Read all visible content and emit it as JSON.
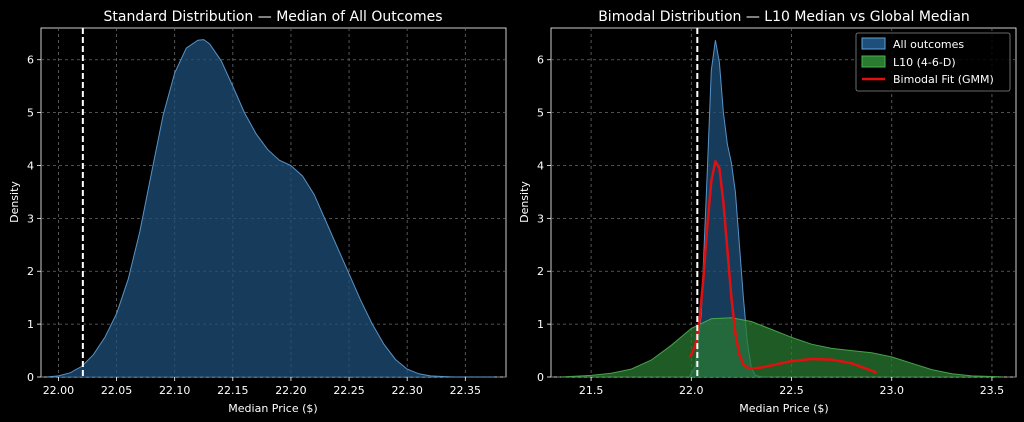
{
  "chart_data": [
    {
      "type": "area",
      "title": "Standard Distribution — Median of All Outcomes",
      "xlabel": "Median Price ($)",
      "ylabel": "Density",
      "xlim": [
        21.985,
        22.385
      ],
      "ylim": [
        0,
        6.6
      ],
      "xticks": [
        22.0,
        22.05,
        22.1,
        22.15,
        22.2,
        22.25,
        22.3,
        22.35
      ],
      "xtick_labels": [
        "22.00",
        "22.05",
        "22.10",
        "22.15",
        "22.20",
        "22.25",
        "22.30",
        "22.35"
      ],
      "yticks": [
        0,
        1,
        2,
        3,
        4,
        5,
        6
      ],
      "grid": true,
      "vline": {
        "x": 22.021,
        "style": "dashed",
        "color": "#ffffff"
      },
      "series": [
        {
          "name": "All outcomes",
          "color": "#5fa0d6",
          "fill": "#1d4f7a",
          "x": [
            21.99,
            22.0,
            22.01,
            22.02,
            22.03,
            22.04,
            22.05,
            22.06,
            22.07,
            22.08,
            22.09,
            22.1,
            22.11,
            22.12,
            22.125,
            22.13,
            22.14,
            22.15,
            22.16,
            22.17,
            22.18,
            22.19,
            22.2,
            22.21,
            22.22,
            22.23,
            22.24,
            22.25,
            22.26,
            22.27,
            22.28,
            22.29,
            22.3,
            22.31,
            22.32,
            22.33,
            22.34,
            22.35,
            22.36,
            22.375
          ],
          "y": [
            0.0,
            0.02,
            0.08,
            0.2,
            0.42,
            0.75,
            1.2,
            1.85,
            2.75,
            3.85,
            4.95,
            5.75,
            6.22,
            6.37,
            6.38,
            6.3,
            5.98,
            5.5,
            5.0,
            4.6,
            4.3,
            4.1,
            4.0,
            3.8,
            3.45,
            2.95,
            2.45,
            1.95,
            1.45,
            1.0,
            0.62,
            0.33,
            0.15,
            0.06,
            0.02,
            0.01,
            0.0,
            0.0,
            0.0,
            0.0
          ]
        }
      ]
    },
    {
      "type": "area",
      "title": "Bimodal Distribution — L10 Median vs Global Median",
      "xlabel": "Median Price ($)",
      "ylabel": "Density",
      "xlim": [
        21.3,
        23.62
      ],
      "ylim": [
        0,
        6.6
      ],
      "xticks": [
        21.5,
        22.0,
        22.5,
        23.0,
        23.5
      ],
      "xtick_labels": [
        "21.5",
        "22.0",
        "22.5",
        "23.0",
        "23.5"
      ],
      "yticks": [
        0,
        1,
        2,
        3,
        4,
        5,
        6
      ],
      "grid": true,
      "legend_position": "top-right",
      "vline": {
        "x": 22.03,
        "style": "dashed",
        "color": "#ffffff"
      },
      "series": [
        {
          "name": "All outcomes",
          "kind": "area",
          "color": "#5fa0d6",
          "fill": "#1d4f7a",
          "x": [
            21.99,
            22.02,
            22.05,
            22.08,
            22.1,
            22.12,
            22.14,
            22.16,
            22.18,
            22.2,
            22.22,
            22.24,
            22.26,
            22.28,
            22.3,
            22.32,
            22.34,
            22.36,
            22.375
          ],
          "y": [
            0.0,
            0.2,
            1.2,
            3.9,
            5.8,
            6.37,
            5.95,
            5.0,
            4.4,
            4.05,
            3.5,
            2.5,
            1.5,
            0.65,
            0.17,
            0.03,
            0.01,
            0.0,
            0.0
          ]
        },
        {
          "name": "L10 (4-6-D)",
          "kind": "area",
          "color": "#4caf50",
          "fill": "#2a7a30",
          "x": [
            21.35,
            21.5,
            21.6,
            21.7,
            21.8,
            21.9,
            22.0,
            22.1,
            22.2,
            22.3,
            22.4,
            22.5,
            22.6,
            22.7,
            22.8,
            22.9,
            23.0,
            23.1,
            23.2,
            23.3,
            23.4,
            23.5,
            23.56
          ],
          "y": [
            0.0,
            0.03,
            0.07,
            0.15,
            0.32,
            0.6,
            0.92,
            1.1,
            1.12,
            1.05,
            0.9,
            0.75,
            0.62,
            0.54,
            0.5,
            0.46,
            0.38,
            0.26,
            0.14,
            0.06,
            0.02,
            0.01,
            0.0
          ]
        },
        {
          "name": "Bimodal Fit (GMM)",
          "kind": "line",
          "color": "#e01010",
          "x": [
            21.995,
            22.02,
            22.04,
            22.06,
            22.08,
            22.1,
            22.12,
            22.14,
            22.16,
            22.18,
            22.2,
            22.22,
            22.24,
            22.26,
            22.28,
            22.3,
            22.35,
            22.4,
            22.5,
            22.6,
            22.7,
            22.8,
            22.9,
            22.925
          ],
          "y": [
            0.38,
            0.6,
            1.05,
            1.85,
            2.85,
            3.7,
            4.08,
            3.95,
            3.3,
            2.4,
            1.5,
            0.82,
            0.42,
            0.24,
            0.18,
            0.16,
            0.18,
            0.22,
            0.3,
            0.34,
            0.33,
            0.26,
            0.12,
            0.08
          ]
        }
      ]
    }
  ]
}
